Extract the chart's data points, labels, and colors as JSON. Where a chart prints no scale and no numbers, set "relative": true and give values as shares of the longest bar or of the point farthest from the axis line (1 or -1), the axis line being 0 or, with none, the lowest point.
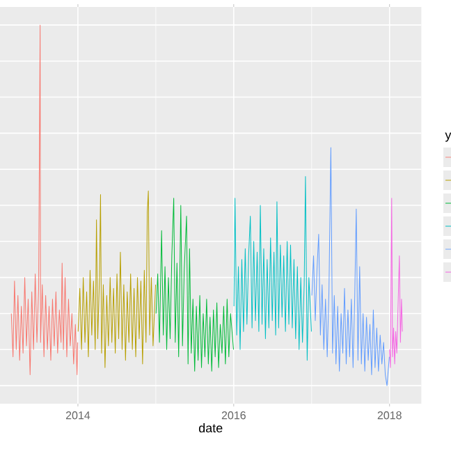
{
  "chart_data": {
    "type": "line",
    "xlabel": "date",
    "legend_title": "y",
    "grid": true,
    "relative": true,
    "xlim": [
      "2013-01-01",
      "2018-05-30"
    ],
    "xticks": [
      {
        "value": "2014-01-01",
        "label": "2014"
      },
      {
        "value": "2015-01-01",
        "label": null
      },
      {
        "value": "2016-01-01",
        "label": "2016"
      },
      {
        "value": "2017-01-01",
        "label": null
      },
      {
        "value": "2018-01-01",
        "label": "2018"
      }
    ],
    "series": [
      {
        "color": "#f8766d",
        "x": [
          "2013-02-23",
          "2013-03-03",
          "2013-03-10",
          "2013-03-18",
          "2013-03-26",
          "2013-04-03",
          "2013-04-11",
          "2013-04-19",
          "2013-04-27",
          "2013-05-05",
          "2013-05-13",
          "2013-05-22",
          "2013-05-30",
          "2013-06-07",
          "2013-06-15",
          "2013-06-23",
          "2013-07-01",
          "2013-07-08",
          "2013-07-10",
          "2013-07-18",
          "2013-07-26",
          "2013-08-03",
          "2013-08-11",
          "2013-08-19",
          "2013-08-27",
          "2013-09-04",
          "2013-09-12",
          "2013-09-20",
          "2013-09-28",
          "2013-10-06",
          "2013-10-14",
          "2013-10-19",
          "2013-10-25",
          "2013-11-02",
          "2013-11-10",
          "2013-11-18",
          "2013-11-26",
          "2013-12-04",
          "2013-12-12",
          "2013-12-20",
          "2013-12-28",
          "2013-12-31"
        ],
        "values": [
          0.2,
          0.08,
          0.29,
          0.1,
          0.25,
          0.07,
          0.22,
          0.09,
          0.3,
          0.11,
          0.24,
          0.03,
          0.26,
          0.1,
          0.31,
          0.12,
          0.27,
          1.0,
          0.12,
          0.28,
          0.08,
          0.25,
          0.1,
          0.22,
          0.07,
          0.24,
          0.11,
          0.26,
          0.09,
          0.21,
          0.12,
          0.34,
          0.1,
          0.3,
          0.08,
          0.24,
          0.11,
          0.2,
          0.06,
          0.17,
          0.03,
          0.12
        ]
      },
      {
        "color": "#b79f00",
        "x": [
          "2014-01-02",
          "2014-01-10",
          "2014-01-18",
          "2014-01-26",
          "2014-02-03",
          "2014-02-11",
          "2014-02-19",
          "2014-02-27",
          "2014-03-07",
          "2014-03-15",
          "2014-03-23",
          "2014-03-29",
          "2014-04-04",
          "2014-04-12",
          "2014-04-17",
          "2014-04-22",
          "2014-04-30",
          "2014-05-08",
          "2014-05-16",
          "2014-05-24",
          "2014-06-01",
          "2014-06-09",
          "2014-06-17",
          "2014-06-25",
          "2014-07-03",
          "2014-07-11",
          "2014-07-19",
          "2014-07-27",
          "2014-08-04",
          "2014-08-12",
          "2014-08-20",
          "2014-08-28",
          "2014-09-05",
          "2014-09-13",
          "2014-09-21",
          "2014-09-29",
          "2014-10-07",
          "2014-10-15",
          "2014-10-23",
          "2014-10-31",
          "2014-11-08",
          "2014-11-16",
          "2014-11-22",
          "2014-11-27",
          "2014-12-03",
          "2014-12-11",
          "2014-12-19",
          "2014-12-31"
        ],
        "values": [
          0.15,
          0.27,
          0.1,
          0.3,
          0.12,
          0.26,
          0.08,
          0.32,
          0.14,
          0.29,
          0.1,
          0.46,
          0.13,
          0.3,
          0.53,
          0.09,
          0.28,
          0.05,
          0.25,
          0.11,
          0.3,
          0.12,
          0.27,
          0.09,
          0.31,
          0.13,
          0.37,
          0.1,
          0.28,
          0.07,
          0.26,
          0.12,
          0.31,
          0.1,
          0.27,
          0.08,
          0.3,
          0.13,
          0.29,
          0.06,
          0.32,
          0.12,
          0.48,
          0.54,
          0.14,
          0.3,
          0.11,
          0.28
        ]
      },
      {
        "color": "#00ba38",
        "x": [
          "2015-01-02",
          "2015-01-10",
          "2015-01-18",
          "2015-01-28",
          "2015-02-05",
          "2015-02-13",
          "2015-02-21",
          "2015-03-01",
          "2015-03-09",
          "2015-03-17",
          "2015-03-26",
          "2015-04-02",
          "2015-04-10",
          "2015-04-18",
          "2015-04-28",
          "2015-05-06",
          "2015-05-14",
          "2015-05-25",
          "2015-06-01",
          "2015-06-08",
          "2015-06-16",
          "2015-06-24",
          "2015-07-02",
          "2015-07-10",
          "2015-07-18",
          "2015-07-26",
          "2015-08-03",
          "2015-08-11",
          "2015-08-19",
          "2015-08-27",
          "2015-09-04",
          "2015-09-12",
          "2015-09-20",
          "2015-09-28",
          "2015-10-06",
          "2015-10-14",
          "2015-10-22",
          "2015-10-30",
          "2015-11-07",
          "2015-11-15",
          "2015-11-23",
          "2015-12-01",
          "2015-12-09",
          "2015-12-17",
          "2015-12-31"
        ],
        "values": [
          0.2,
          0.31,
          0.12,
          0.43,
          0.14,
          0.33,
          0.1,
          0.3,
          0.13,
          0.36,
          0.52,
          0.12,
          0.34,
          0.08,
          0.5,
          0.11,
          0.32,
          0.47,
          0.06,
          0.38,
          0.09,
          0.24,
          0.04,
          0.22,
          0.07,
          0.25,
          0.05,
          0.2,
          0.08,
          0.24,
          0.06,
          0.19,
          0.04,
          0.21,
          0.08,
          0.23,
          0.05,
          0.17,
          0.09,
          0.22,
          0.06,
          0.24,
          0.08,
          0.2,
          0.1
        ]
      },
      {
        "color": "#00bfc4",
        "x": [
          "2016-01-02",
          "2016-01-07",
          "2016-01-15",
          "2016-01-23",
          "2016-01-31",
          "2016-02-08",
          "2016-02-16",
          "2016-02-24",
          "2016-03-03",
          "2016-03-11",
          "2016-03-19",
          "2016-03-27",
          "2016-04-04",
          "2016-04-12",
          "2016-04-20",
          "2016-04-28",
          "2016-05-05",
          "2016-05-13",
          "2016-05-21",
          "2016-05-29",
          "2016-06-06",
          "2016-06-14",
          "2016-06-22",
          "2016-06-30",
          "2016-07-08",
          "2016-07-16",
          "2016-07-22",
          "2016-07-30",
          "2016-08-07",
          "2016-08-15",
          "2016-08-23",
          "2016-08-31",
          "2016-09-08",
          "2016-09-16",
          "2016-09-24",
          "2016-10-02",
          "2016-10-10",
          "2016-10-18",
          "2016-10-26",
          "2016-11-03",
          "2016-11-11",
          "2016-11-19",
          "2016-11-27",
          "2016-12-03",
          "2016-12-11",
          "2016-12-19",
          "2016-12-31"
        ],
        "values": [
          0.22,
          0.52,
          0.14,
          0.33,
          0.1,
          0.35,
          0.15,
          0.38,
          0.17,
          0.36,
          0.47,
          0.16,
          0.4,
          0.18,
          0.37,
          0.15,
          0.5,
          0.17,
          0.38,
          0.13,
          0.35,
          0.16,
          0.41,
          0.18,
          0.37,
          0.14,
          0.51,
          0.16,
          0.39,
          0.19,
          0.36,
          0.15,
          0.4,
          0.17,
          0.39,
          0.16,
          0.35,
          0.13,
          0.33,
          0.1,
          0.3,
          0.12,
          0.28,
          0.58,
          0.07,
          0.3,
          0.15
        ]
      },
      {
        "color": "#619cff",
        "x": [
          "2017-01-02",
          "2017-01-10",
          "2017-01-18",
          "2017-01-26",
          "2017-02-03",
          "2017-02-11",
          "2017-02-19",
          "2017-02-27",
          "2017-03-07",
          "2017-03-15",
          "2017-03-23",
          "2017-04-01",
          "2017-04-09",
          "2017-04-17",
          "2017-04-25",
          "2017-05-03",
          "2017-05-11",
          "2017-05-19",
          "2017-05-27",
          "2017-06-04",
          "2017-06-12",
          "2017-06-20",
          "2017-06-28",
          "2017-07-06",
          "2017-07-14",
          "2017-07-22",
          "2017-07-29",
          "2017-08-06",
          "2017-08-14",
          "2017-08-22",
          "2017-08-30",
          "2017-09-07",
          "2017-09-15",
          "2017-09-23",
          "2017-10-01",
          "2017-10-09",
          "2017-10-17",
          "2017-10-25",
          "2017-11-02",
          "2017-11-10",
          "2017-11-18",
          "2017-11-26",
          "2017-12-04",
          "2017-12-12",
          "2017-12-20",
          "2017-12-31"
        ],
        "values": [
          0.25,
          0.36,
          0.18,
          0.32,
          0.42,
          0.14,
          0.28,
          0.1,
          0.24,
          0.08,
          0.26,
          0.66,
          0.09,
          0.25,
          0.06,
          0.22,
          0.04,
          0.2,
          0.09,
          0.27,
          0.06,
          0.21,
          0.08,
          0.24,
          0.05,
          0.25,
          0.49,
          0.07,
          0.33,
          0.06,
          0.2,
          0.04,
          0.19,
          0.07,
          0.17,
          0.03,
          0.21,
          0.05,
          0.16,
          0.04,
          0.14,
          0.06,
          0.12,
          0.03,
          0.0,
          0.08
        ]
      },
      {
        "color": "#f564e3",
        "x": [
          "2018-01-01",
          "2018-01-05",
          "2018-01-11",
          "2018-01-15",
          "2018-01-20",
          "2018-01-25",
          "2018-01-30",
          "2018-02-04",
          "2018-02-09",
          "2018-02-16",
          "2018-02-21",
          "2018-02-26",
          "2018-03-02"
        ],
        "values": [
          0.1,
          0.05,
          0.52,
          0.08,
          0.16,
          0.06,
          0.15,
          0.09,
          0.2,
          0.36,
          0.12,
          0.24,
          0.15
        ]
      }
    ]
  }
}
